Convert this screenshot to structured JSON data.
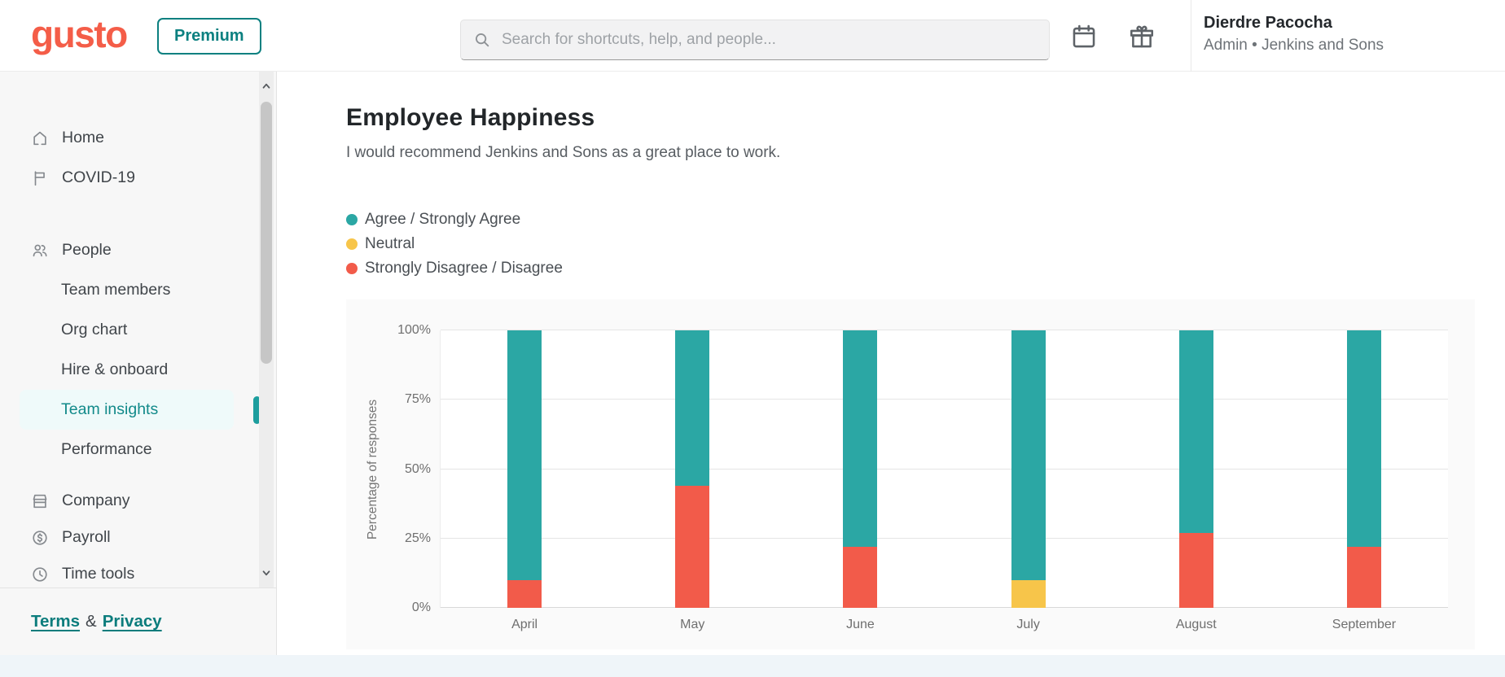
{
  "header": {
    "logo_text": "gusto",
    "premium_label": "Premium",
    "search": {
      "placeholder": "Search for shortcuts, help, and people..."
    },
    "user": {
      "name": "Dierdre Pacocha",
      "subtitle": "Admin • Jenkins and Sons"
    }
  },
  "sidebar": {
    "items": [
      {
        "label": "Home",
        "icon": "home",
        "level": "top",
        "group": 1
      },
      {
        "label": "COVID-19",
        "icon": "flag",
        "level": "top",
        "group": 1
      },
      {
        "label": "People",
        "icon": "people",
        "level": "top",
        "group": 2,
        "gap": "lg"
      },
      {
        "label": "Team members",
        "level": "sub",
        "group": 2
      },
      {
        "label": "Org chart",
        "level": "sub",
        "group": 2
      },
      {
        "label": "Hire & onboard",
        "level": "sub",
        "group": 2
      },
      {
        "label": "Team insights",
        "level": "sub",
        "group": 2,
        "selected": true
      },
      {
        "label": "Performance",
        "level": "sub",
        "group": 2
      },
      {
        "label": "Company",
        "icon": "company",
        "level": "top",
        "group": 3,
        "gap": "sm"
      },
      {
        "label": "Payroll",
        "icon": "payroll",
        "level": "top",
        "group": 3
      },
      {
        "label": "Time tools",
        "icon": "clock",
        "level": "top",
        "group": 3
      }
    ],
    "footer": {
      "terms": "Terms",
      "amp": "&",
      "privacy": "Privacy"
    }
  },
  "main": {
    "title": "Employee Happiness",
    "subtitle": "I would recommend Jenkins and Sons as a great place to work."
  },
  "legend": [
    {
      "label": "Agree / Strongly Agree",
      "color": "#2BA7A4"
    },
    {
      "label": "Neutral",
      "color": "#F7C54A"
    },
    {
      "label": "Strongly Disagree / Disagree",
      "color": "#F25B4A"
    }
  ],
  "chart_data": {
    "type": "bar",
    "stacked": true,
    "title": "Employee Happiness",
    "subtitle": "I would recommend Jenkins and Sons as a great place to work.",
    "categories": [
      "April",
      "May",
      "June",
      "July",
      "August",
      "September"
    ],
    "series": [
      {
        "name": "Strongly Disagree / Disagree",
        "color": "#F25B4A",
        "values": [
          10,
          44,
          22,
          0,
          27,
          22
        ]
      },
      {
        "name": "Neutral",
        "color": "#F7C54A",
        "values": [
          0,
          0,
          0,
          10,
          0,
          0
        ]
      },
      {
        "name": "Agree / Strongly Agree",
        "color": "#2BA7A4",
        "values": [
          90,
          56,
          78,
          90,
          73,
          78
        ]
      }
    ],
    "xlabel": "",
    "ylabel": "Percentage of responses",
    "ylim": [
      0,
      100
    ],
    "yticks": [
      {
        "value": 0,
        "label": "0%"
      },
      {
        "value": 25,
        "label": "25%"
      },
      {
        "value": 50,
        "label": "50%"
      },
      {
        "value": 75,
        "label": "75%"
      },
      {
        "value": 100,
        "label": "100%"
      }
    ],
    "grid": true,
    "legend_position": "top-left"
  },
  "colors": {
    "brand_red": "#F45D48",
    "brand_teal": "#0C8080",
    "selected_nav": "#128A8A",
    "bar_agree": "#2BA7A4",
    "bar_neutral": "#F7C54A",
    "bar_disagree": "#F25B4A",
    "sidebar_bg": "#F7F7F7",
    "chart_card_bg": "#FAFAFA",
    "page_strip_bg": "#EFF5F9"
  }
}
